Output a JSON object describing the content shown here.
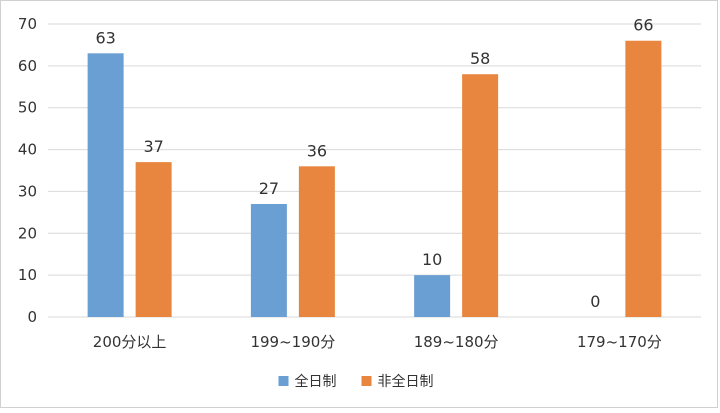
{
  "chart_data": {
    "type": "bar",
    "title": "",
    "xlabel": "",
    "ylabel": "",
    "categories": [
      "200分以上",
      "199~190分",
      "189~180分",
      "179~170分"
    ],
    "series": [
      {
        "name": "全日制",
        "values": [
          63,
          27,
          10,
          0
        ],
        "color": "#6a9fd4"
      },
      {
        "name": "非全日制",
        "values": [
          37,
          36,
          58,
          66
        ],
        "color": "#e8853f"
      }
    ],
    "ylim": [
      0,
      70
    ],
    "yticks": [
      0,
      10,
      20,
      30,
      40,
      50,
      60,
      70
    ],
    "grid": true,
    "legend_position": "bottom"
  }
}
